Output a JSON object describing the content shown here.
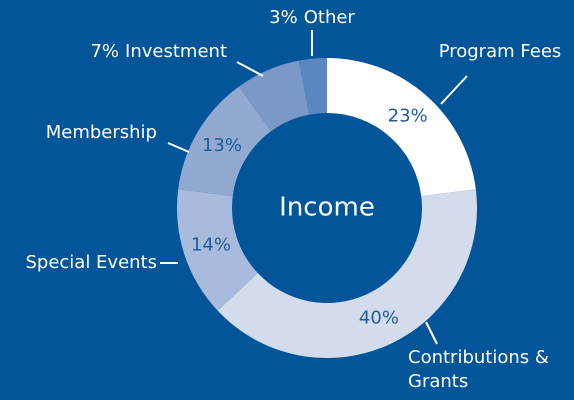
{
  "chart_data": {
    "type": "donut",
    "title": "Income",
    "categories": [
      "Program Fees",
      "Contributions & Grants",
      "Special Events",
      "Membership",
      "Investment",
      "Other"
    ],
    "values": [
      23,
      40,
      14,
      13,
      7,
      3
    ],
    "value_labels": [
      "23%",
      "40%",
      "14%",
      "13%",
      "7%",
      "3%"
    ],
    "colors": [
      "#ffffff",
      "#d3dcec",
      "#a9bbdc",
      "#92a9d2",
      "#7a99c8",
      "#5c86bf"
    ]
  }
}
